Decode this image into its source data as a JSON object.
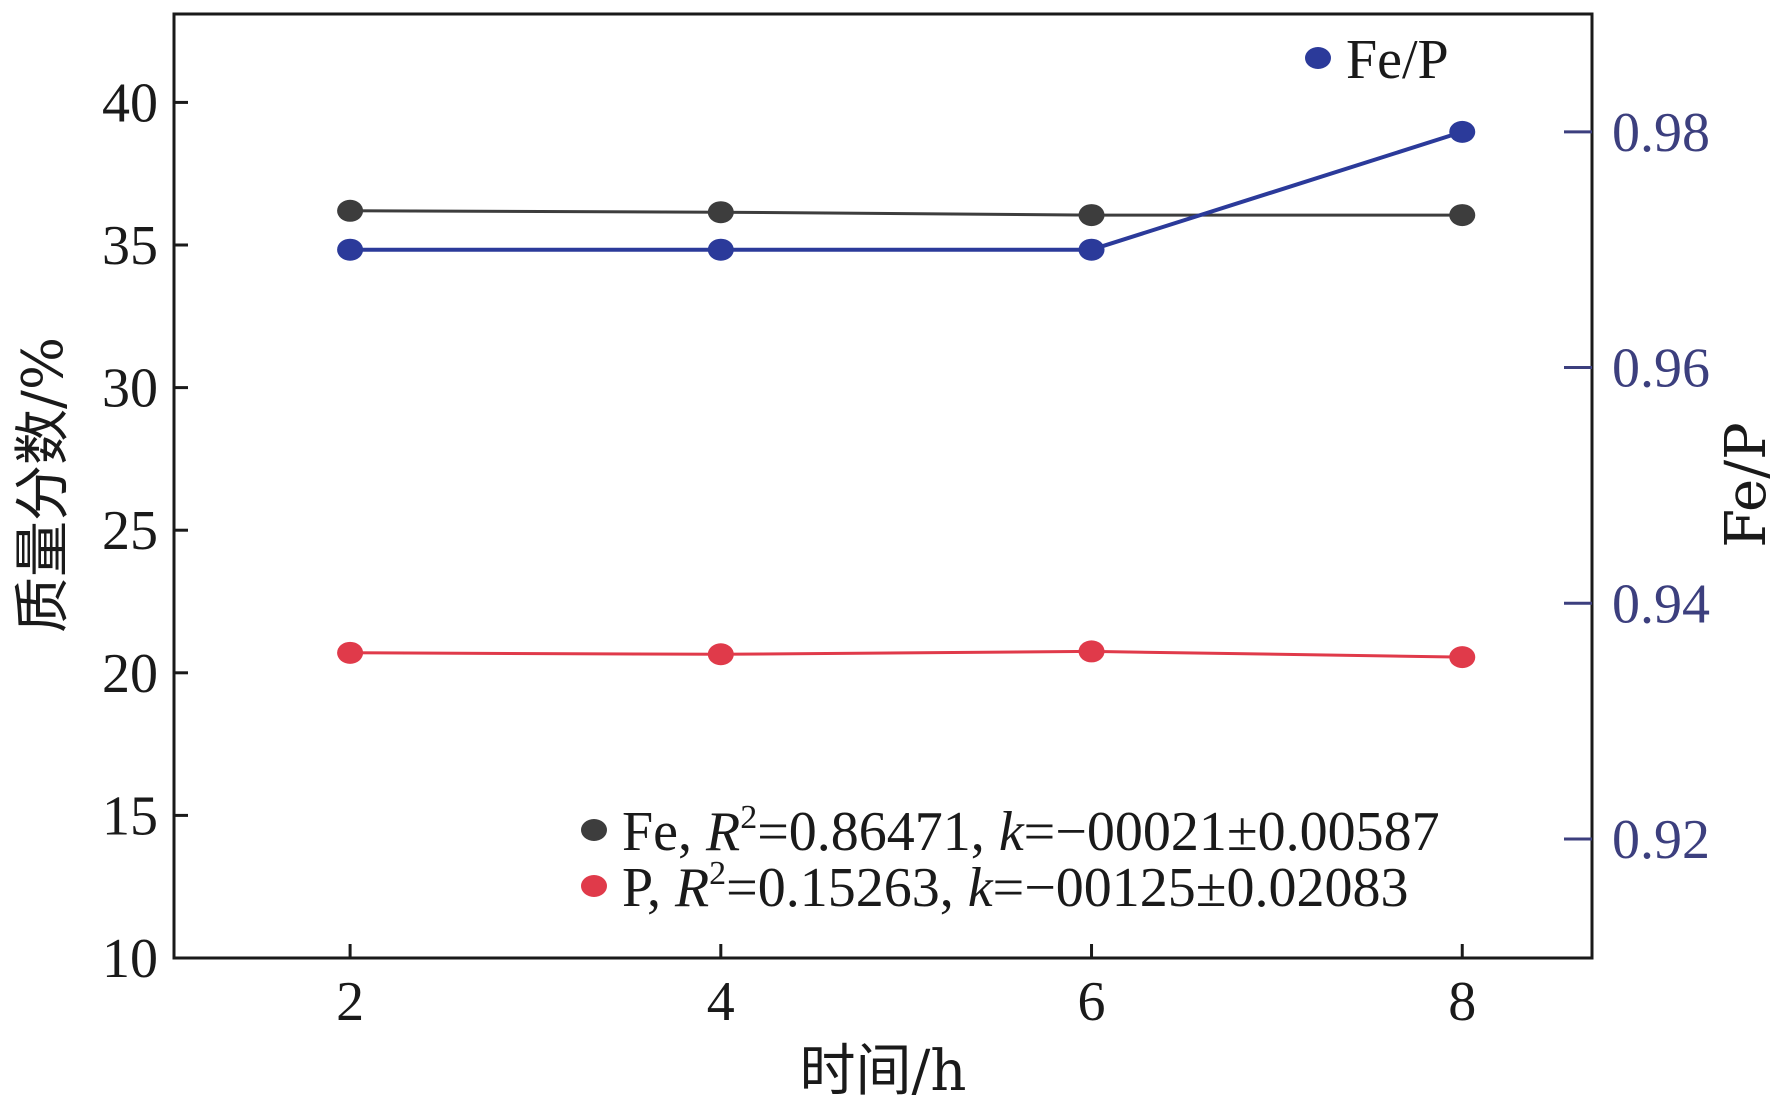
{
  "chart_data": {
    "type": "line",
    "x": [
      2,
      4,
      6,
      8
    ],
    "xlabel": "时间/h",
    "ylabel": "质量分数/%",
    "y2label": "Fe/P",
    "xticks": [
      "2",
      "4",
      "6",
      "8"
    ],
    "yticks": [
      "10",
      "15",
      "20",
      "25",
      "30",
      "35",
      "40"
    ],
    "y2ticks": [
      "0.92",
      "0.94",
      "0.96",
      "0.98"
    ],
    "xlim": [
      1.05,
      8.7
    ],
    "ylim": [
      10,
      43.1
    ],
    "y2lim": [
      0.9099,
      0.99
    ],
    "grid": false,
    "series": [
      {
        "name": "Fe",
        "legend_prefix": "Fe, ",
        "r_label": "R",
        "r_sup": "2",
        "r_value": "=0.86471, ",
        "k_label": "k",
        "k_value": "=−00021±0.00587",
        "axis": "left",
        "color": "#3d3d3d",
        "values": [
          36.2,
          36.15,
          36.05,
          36.05
        ]
      },
      {
        "name": "P",
        "legend_prefix": "P, ",
        "r_label": "R",
        "r_sup": "2",
        "r_value": "=0.15263, ",
        "k_label": "k",
        "k_value": "=−00125±0.02083",
        "axis": "left",
        "color": "#e03a4a",
        "values": [
          20.7,
          20.65,
          20.75,
          20.55
        ]
      },
      {
        "name": "Fe/P",
        "axis": "right",
        "color": "#2b3a9a",
        "values": [
          0.97,
          0.97,
          0.97,
          0.98
        ]
      }
    ]
  }
}
